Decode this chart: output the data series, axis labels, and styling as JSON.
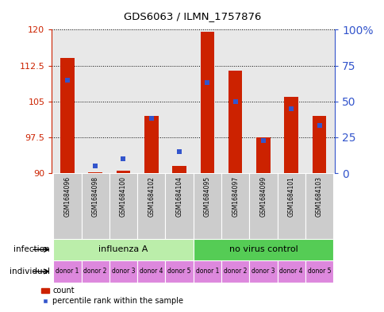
{
  "title": "GDS6063 / ILMN_1757876",
  "samples": [
    "GSM1684096",
    "GSM1684098",
    "GSM1684100",
    "GSM1684102",
    "GSM1684104",
    "GSM1684095",
    "GSM1684097",
    "GSM1684099",
    "GSM1684101",
    "GSM1684103"
  ],
  "red_values": [
    114.0,
    90.2,
    90.5,
    102.0,
    91.5,
    119.5,
    111.5,
    97.5,
    106.0,
    102.0
  ],
  "blue_pct": [
    65,
    5,
    10,
    38,
    15,
    63,
    50,
    23,
    45,
    33
  ],
  "ylim_left": [
    90,
    120
  ],
  "yticks_left": [
    90,
    97.5,
    105,
    112.5,
    120
  ],
  "yticks_right": [
    0,
    25,
    50,
    75,
    100
  ],
  "infection_groups": [
    {
      "label": "influenza A",
      "start": 0,
      "end": 5,
      "color": "#bbeeaa"
    },
    {
      "label": "no virus control",
      "start": 5,
      "end": 10,
      "color": "#55cc55"
    }
  ],
  "individual_labels": [
    "donor 1",
    "donor 2",
    "donor 3",
    "donor 4",
    "donor 5",
    "donor 1",
    "donor 2",
    "donor 3",
    "donor 4",
    "donor 5"
  ],
  "individual_color": "#dd88dd",
  "bar_color": "#cc2200",
  "blue_color": "#3355cc",
  "plot_bg": "#e8e8e8",
  "sample_bg": "#cccccc",
  "legend_count": "count",
  "legend_pct": "percentile rank within the sample",
  "left_label_color": "#cc2200",
  "right_label_color": "#3355cc"
}
